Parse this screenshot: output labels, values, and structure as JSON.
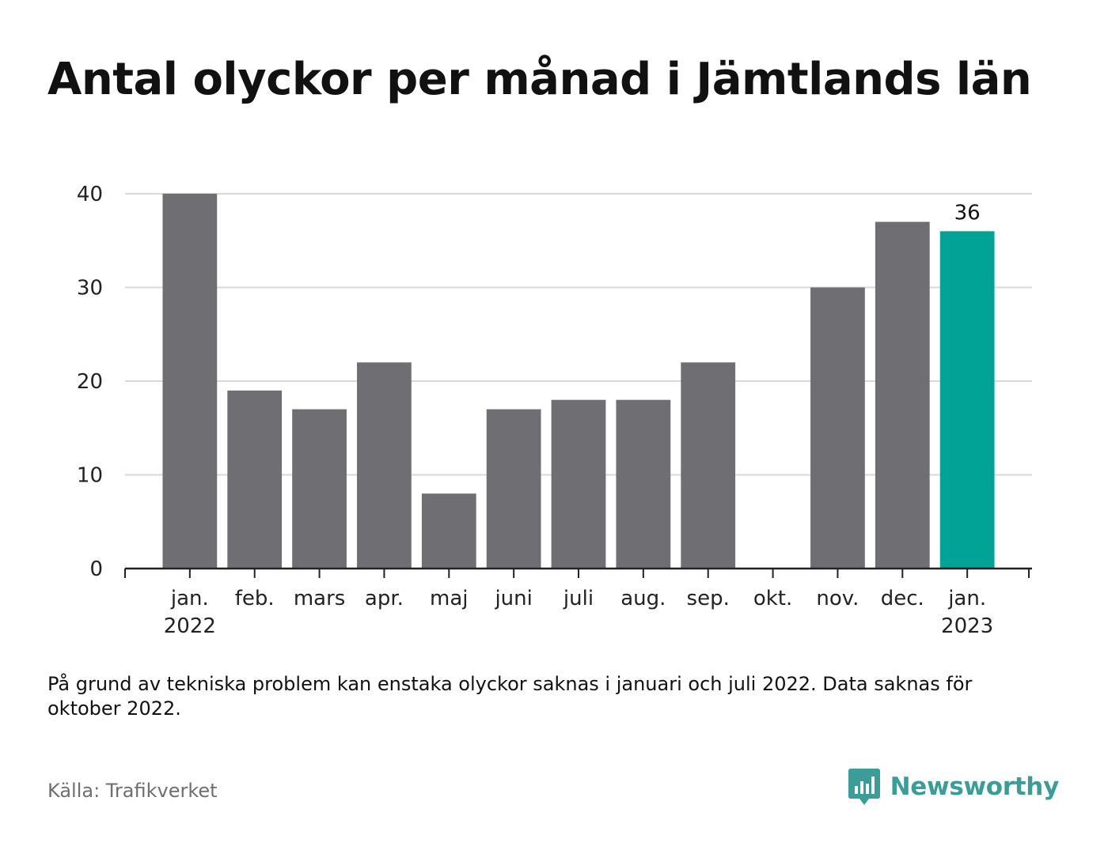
{
  "title": "Antal olyckor per månad i Jämtlands län",
  "note": "På grund av tekniska problem kan enstaka olyckor saknas i januari och juli 2022. Data saknas för oktober 2022.",
  "source": "Källa: Trafikverket",
  "brand": {
    "name": "Newsworthy",
    "icon": "newsworthy-logo-icon"
  },
  "colors": {
    "bar": "#6f6e73",
    "highlight": "#00a396",
    "grid": "#d9d9d9",
    "axis": "#222222",
    "brand": "#3a9d98"
  },
  "chart_data": {
    "type": "bar",
    "categories": [
      "jan.",
      "feb.",
      "mars",
      "apr.",
      "maj",
      "juni",
      "juli",
      "aug.",
      "sep.",
      "okt.",
      "nov.",
      "dec.",
      "jan."
    ],
    "category_sublabels": [
      "2022",
      "",
      "",
      "",
      "",
      "",
      "",
      "",
      "",
      "",
      "",
      "",
      "2023"
    ],
    "values": [
      40,
      19,
      17,
      22,
      8,
      17,
      18,
      18,
      22,
      null,
      30,
      37,
      36
    ],
    "highlight_index": 12,
    "data_labels": {
      "12": "36"
    },
    "ylim": [
      0,
      40
    ],
    "yticks": [
      0,
      10,
      20,
      30,
      40
    ],
    "grid": true,
    "legend": "none"
  }
}
